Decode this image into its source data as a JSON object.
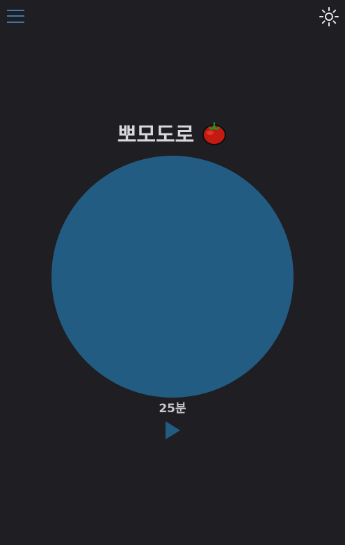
{
  "header": {
    "menu_icon": "hamburger-menu-icon",
    "theme_icon": "sun-icon"
  },
  "main": {
    "title": "뽀모도로",
    "title_icon": "tomato-icon",
    "duration_label": "25분",
    "play_icon": "play-icon"
  },
  "colors": {
    "background": "#1f1e22",
    "accent": "#3f77ad",
    "timer_circle": "#235c83",
    "text": "#d9d9db"
  }
}
